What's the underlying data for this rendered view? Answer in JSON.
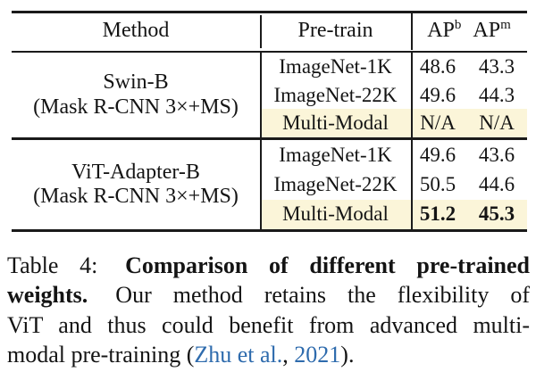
{
  "colors": {
    "highlight": "#fbf5d9",
    "link": "#2e6bad",
    "rule": "#1a1a1a"
  },
  "table": {
    "header": {
      "method": "Method",
      "pretrain": "Pre-train",
      "ap1_base": "AP",
      "ap1_sup": "b",
      "ap2_base": "AP",
      "ap2_sup": "m"
    },
    "groups": [
      {
        "method_line1": "Swin-B",
        "method_line2": "(Mask R-CNN 3×+MS)",
        "rows": [
          {
            "pretrain": "ImageNet-1K",
            "ap_b": "48.6",
            "ap_m": "43.3"
          },
          {
            "pretrain": "ImageNet-22K",
            "ap_b": "49.6",
            "ap_m": "44.3"
          },
          {
            "pretrain": "Multi-Modal",
            "ap_b": "N/A",
            "ap_m": "N/A"
          }
        ]
      },
      {
        "method_line1": "ViT-Adapter-B",
        "method_line2": "(Mask R-CNN 3×+MS)",
        "rows": [
          {
            "pretrain": "ImageNet-1K",
            "ap_b": "49.6",
            "ap_m": "43.6"
          },
          {
            "pretrain": "ImageNet-22K",
            "ap_b": "50.5",
            "ap_m": "44.6"
          },
          {
            "pretrain": "Multi-Modal",
            "ap_b": "51.2",
            "ap_m": "45.3"
          }
        ]
      }
    ]
  },
  "caption": {
    "label": "Table 4:",
    "bold1": "Comparison of different pre-trained",
    "bold2": "weights.",
    "line2_rest": "Our method retains the flexibility of",
    "line3": "ViT and thus could benefit from advanced multi-",
    "line4_pre": "modal pre-training (",
    "cite_authors": "Zhu et al.",
    "cite_sep": ", ",
    "cite_year": "2021",
    "line4_post": ")."
  }
}
